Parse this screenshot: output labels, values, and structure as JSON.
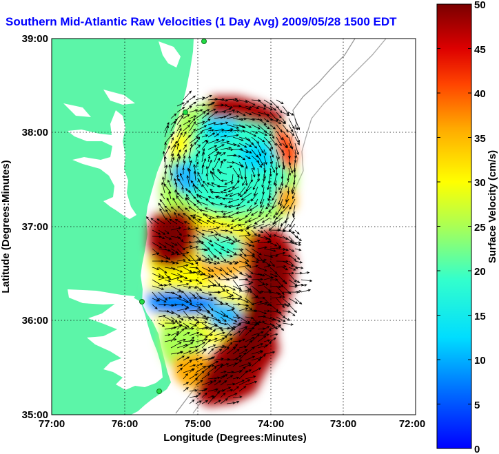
{
  "title": "Southern Mid-Atlantic Raw Velocities (1 Day Avg) 2009/05/28 1500 EDT",
  "map": {
    "xlabel": "Longitude (Degrees:Minutes)",
    "ylabel": "Latitude (Degrees:Minutes)",
    "x_ticks": [
      "77:00",
      "76:00",
      "75:00",
      "74:00",
      "73:00",
      "72:00"
    ],
    "y_ticks": [
      "39:00",
      "38:00",
      "37:00",
      "36:00",
      "35:00"
    ],
    "xlim": [
      -77,
      -72
    ],
    "ylim": [
      35,
      39
    ],
    "land_color": "#5cf5a8",
    "grid": "dotted"
  },
  "colorbar": {
    "label": "Surface Velocity (cm/s)",
    "ticks": [
      "50",
      "45",
      "40",
      "35",
      "30",
      "25",
      "20",
      "15",
      "10",
      "5",
      "0"
    ],
    "range": [
      0,
      50
    ]
  }
}
